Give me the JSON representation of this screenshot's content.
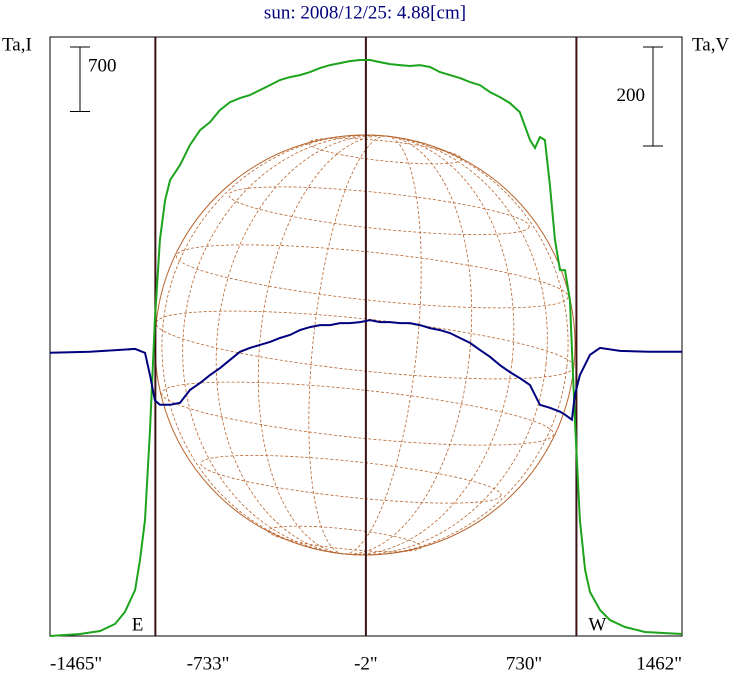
{
  "chart_data": {
    "type": "line",
    "title": "sun: 2008/12/25: 4.88[cm]",
    "ylabel": "Ta,I",
    "y2label": "Ta,V",
    "xlim": [
      -1465,
      1462
    ],
    "xticks": [
      {
        "value": -1465,
        "label": "-1465\""
      },
      {
        "value": -733,
        "label": "-733\""
      },
      {
        "value": -2,
        "label": "-2\""
      },
      {
        "value": 730,
        "label": "730\""
      },
      {
        "value": 1462,
        "label": "1462\""
      }
    ],
    "ylim": [
      0,
      6500
    ],
    "y2lim": [
      -605,
      605
    ],
    "grid": false,
    "vlines": [
      -977,
      -2,
      973
    ],
    "vline_color": "#3a1212",
    "annotations": [
      {
        "text": "E",
        "x": -977,
        "side": "left"
      },
      {
        "text": "W",
        "x": 973,
        "side": "right"
      }
    ],
    "scale_bars": [
      {
        "value": 700,
        "axis": "y"
      },
      {
        "value": 200,
        "axis": "y2"
      }
    ],
    "series": [
      {
        "name": "Ta,I",
        "color": "#1ca41c",
        "axis": "y",
        "x": [
          -1465,
          -1326,
          -1233,
          -1164,
          -1118,
          -1071,
          -1048,
          -1025,
          -1002,
          -979,
          -956,
          -932,
          -909,
          -863,
          -817,
          -770,
          -724,
          -678,
          -631,
          -585,
          -539,
          -493,
          -446,
          -400,
          -354,
          -307,
          -261,
          -215,
          -168,
          -122,
          -76,
          -29,
          17,
          63,
          110,
          156,
          202,
          248,
          295,
          341,
          387,
          434,
          480,
          526,
          573,
          619,
          665,
          711,
          758,
          781,
          804,
          827,
          850,
          874,
          897,
          920,
          943,
          966,
          989,
          1013,
          1036,
          1082,
          1128,
          1198,
          1290,
          1462
        ],
        "values": [
          0,
          22,
          54,
          130,
          260,
          499,
          825,
          1259,
          2235,
          3429,
          4297,
          4731,
          4948,
          5110,
          5327,
          5490,
          5577,
          5707,
          5794,
          5837,
          5870,
          5924,
          5978,
          6033,
          6065,
          6087,
          6119,
          6163,
          6195,
          6217,
          6239,
          6250,
          6250,
          6228,
          6206,
          6195,
          6185,
          6195,
          6174,
          6119,
          6087,
          6054,
          6011,
          5978,
          5902,
          5848,
          5783,
          5685,
          5382,
          5295,
          5414,
          5382,
          4893,
          4297,
          3971,
          3971,
          3646,
          2344,
          1259,
          716,
          477,
          282,
          174,
          98,
          43,
          22
        ]
      },
      {
        "name": "Ta,V",
        "color": "#00007f",
        "axis": "y2",
        "x": [
          -1465,
          -1280,
          -1141,
          -1071,
          -1025,
          -1002,
          -979,
          -956,
          -909,
          -863,
          -817,
          -770,
          -724,
          -678,
          -631,
          -585,
          -539,
          -493,
          -446,
          -400,
          -354,
          -307,
          -261,
          -215,
          -168,
          -122,
          -76,
          -29,
          17,
          63,
          110,
          156,
          202,
          248,
          295,
          341,
          387,
          434,
          480,
          526,
          573,
          619,
          665,
          711,
          758,
          804,
          850,
          897,
          920,
          952,
          966,
          989,
          1036,
          1082,
          1175,
          1314,
          1462
        ],
        "values": [
          -33,
          -31,
          -27,
          -25,
          -33,
          -78,
          -129,
          -138,
          -138,
          -134,
          -108,
          -94,
          -78,
          -64,
          -47,
          -31,
          -23,
          -17,
          -11,
          -3,
          3,
          13,
          19,
          23,
          23,
          27,
          27,
          29,
          33,
          29,
          29,
          27,
          27,
          23,
          17,
          13,
          7,
          -3,
          -13,
          -27,
          -41,
          -58,
          -72,
          -84,
          -98,
          -138,
          -144,
          -152,
          -158,
          -168,
          -118,
          -78,
          -37,
          -23,
          -29,
          -31,
          -31
        ]
      }
    ]
  }
}
